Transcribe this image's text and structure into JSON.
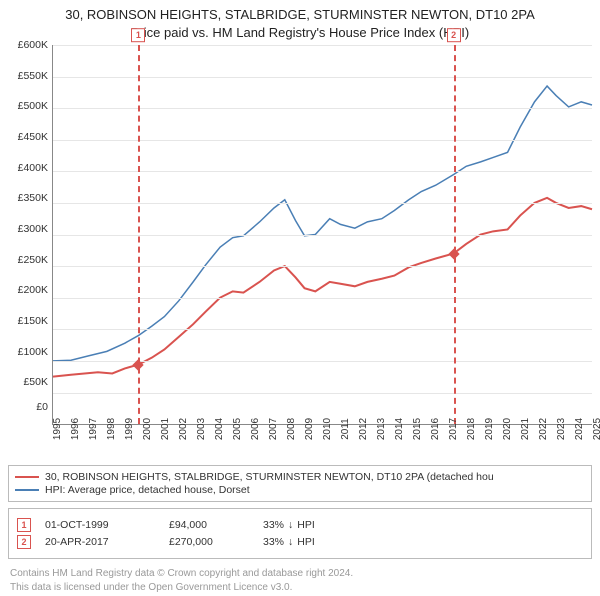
{
  "title_line1": "30, ROBINSON HEIGHTS, STALBRIDGE, STURMINSTER NEWTON, DT10 2PA",
  "title_line2": "Price paid vs. HM Land Registry's House Price Index (HPI)",
  "chart": {
    "type": "line",
    "background_color": "#ffffff",
    "grid_color": "#e6e6e6",
    "axis_color": "#888888",
    "ylim": [
      0,
      600000
    ],
    "ytick_step": 50000,
    "ytick_labels": [
      "£600K",
      "£550K",
      "£500K",
      "£450K",
      "£400K",
      "£350K",
      "£300K",
      "£250K",
      "£200K",
      "£150K",
      "£100K",
      "£50K",
      "£0"
    ],
    "xlim": [
      1995,
      2025
    ],
    "xtick_years": [
      1995,
      1996,
      1997,
      1998,
      1999,
      2000,
      2001,
      2002,
      2003,
      2004,
      2005,
      2006,
      2007,
      2008,
      2009,
      2010,
      2011,
      2012,
      2013,
      2014,
      2015,
      2016,
      2017,
      2018,
      2019,
      2020,
      2021,
      2022,
      2023,
      2024,
      2025
    ],
    "label_fontsize": 10.5,
    "series": {
      "price_paid": {
        "color": "#d9534f",
        "width": 2,
        "points": [
          [
            1995,
            75000
          ],
          [
            1996,
            78000
          ],
          [
            1997.5,
            82000
          ],
          [
            1998.3,
            80000
          ],
          [
            1999,
            88000
          ],
          [
            1999.75,
            94000
          ],
          [
            2000.5,
            105000
          ],
          [
            2001.2,
            118000
          ],
          [
            2002,
            138000
          ],
          [
            2002.8,
            158000
          ],
          [
            2003.5,
            178000
          ],
          [
            2004.3,
            200000
          ],
          [
            2005,
            210000
          ],
          [
            2005.6,
            208000
          ],
          [
            2006.5,
            225000
          ],
          [
            2007.3,
            243000
          ],
          [
            2007.9,
            250000
          ],
          [
            2008.5,
            232000
          ],
          [
            2009,
            215000
          ],
          [
            2009.6,
            210000
          ],
          [
            2010.4,
            225000
          ],
          [
            2011,
            222000
          ],
          [
            2011.8,
            218000
          ],
          [
            2012.5,
            225000
          ],
          [
            2013.3,
            230000
          ],
          [
            2014,
            235000
          ],
          [
            2014.8,
            248000
          ],
          [
            2015.5,
            255000
          ],
          [
            2016.3,
            262000
          ],
          [
            2017.3,
            270000
          ],
          [
            2018,
            285000
          ],
          [
            2018.8,
            300000
          ],
          [
            2019.5,
            305000
          ],
          [
            2020.3,
            308000
          ],
          [
            2021,
            330000
          ],
          [
            2021.8,
            350000
          ],
          [
            2022.5,
            358000
          ],
          [
            2023,
            350000
          ],
          [
            2023.7,
            342000
          ],
          [
            2024.4,
            345000
          ],
          [
            2025,
            340000
          ]
        ]
      },
      "hpi": {
        "color": "#4a7fb5",
        "width": 1.5,
        "points": [
          [
            1995,
            100000
          ],
          [
            1996,
            101000
          ],
          [
            1997,
            108000
          ],
          [
            1998,
            115000
          ],
          [
            1999,
            128000
          ],
          [
            1999.75,
            140000
          ],
          [
            2000.5,
            155000
          ],
          [
            2001.2,
            170000
          ],
          [
            2002,
            195000
          ],
          [
            2002.8,
            225000
          ],
          [
            2003.5,
            252000
          ],
          [
            2004.3,
            280000
          ],
          [
            2005,
            295000
          ],
          [
            2005.6,
            298000
          ],
          [
            2006.5,
            320000
          ],
          [
            2007.3,
            342000
          ],
          [
            2007.9,
            355000
          ],
          [
            2008.5,
            322000
          ],
          [
            2009,
            298000
          ],
          [
            2009.6,
            300000
          ],
          [
            2010.4,
            325000
          ],
          [
            2011,
            316000
          ],
          [
            2011.8,
            310000
          ],
          [
            2012.5,
            320000
          ],
          [
            2013.3,
            325000
          ],
          [
            2014,
            338000
          ],
          [
            2014.8,
            355000
          ],
          [
            2015.5,
            368000
          ],
          [
            2016.3,
            378000
          ],
          [
            2017.3,
            395000
          ],
          [
            2018,
            408000
          ],
          [
            2018.8,
            415000
          ],
          [
            2019.5,
            422000
          ],
          [
            2020.3,
            430000
          ],
          [
            2021,
            470000
          ],
          [
            2021.8,
            510000
          ],
          [
            2022.5,
            535000
          ],
          [
            2023,
            520000
          ],
          [
            2023.7,
            502000
          ],
          [
            2024.4,
            510000
          ],
          [
            2025,
            505000
          ]
        ]
      }
    },
    "sale_markers": [
      {
        "num": "1",
        "year": 1999.75,
        "value": 94000
      },
      {
        "num": "2",
        "year": 2017.3,
        "value": 270000
      }
    ],
    "marker_box_color": "#d9534f"
  },
  "legend": {
    "items": [
      {
        "color": "#d9534f",
        "label": "30, ROBINSON HEIGHTS, STALBRIDGE, STURMINSTER NEWTON, DT10 2PA (detached hou"
      },
      {
        "color": "#4a7fb5",
        "label": "HPI: Average price, detached house, Dorset"
      }
    ]
  },
  "sales": [
    {
      "num": "1",
      "date": "01-OCT-1999",
      "price": "£94,000",
      "delta_pct": "33%",
      "delta_dir": "↓",
      "delta_ref": "HPI"
    },
    {
      "num": "2",
      "date": "20-APR-2017",
      "price": "£270,000",
      "delta_pct": "33%",
      "delta_dir": "↓",
      "delta_ref": "HPI"
    }
  ],
  "attribution_line1": "Contains HM Land Registry data © Crown copyright and database right 2024.",
  "attribution_line2": "This data is licensed under the Open Government Licence v3.0."
}
